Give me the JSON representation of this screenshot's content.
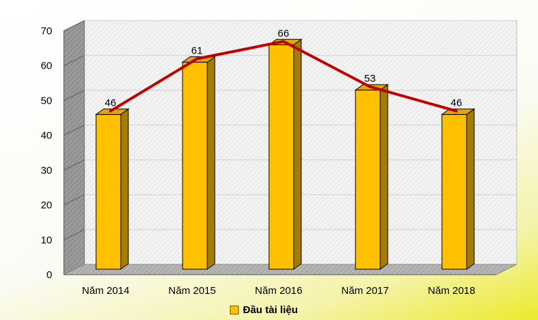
{
  "chart_data": {
    "type": "bar",
    "categories": [
      "Năm 2014",
      "Năm 2015",
      "Năm 2016",
      "Năm 2017",
      "Năm 2018"
    ],
    "series": [
      {
        "name": "Đầu tài liệu",
        "values": [
          46,
          61,
          66,
          53,
          46
        ]
      }
    ],
    "overlay_line": {
      "values": [
        46,
        61,
        66,
        53,
        46
      ],
      "color": "#C00000"
    },
    "data_labels": [
      "46",
      "61",
      "66",
      "53",
      "46"
    ],
    "y_ticks": [
      "0",
      "10",
      "20",
      "30",
      "40",
      "50",
      "60",
      "70"
    ],
    "ylim": [
      0,
      70
    ],
    "grid": true,
    "legend_position": "bottom",
    "style": "3d-column",
    "colors": {
      "bar_front": "#FFC000",
      "bar_side": "#A67C00",
      "bar_top": "#E0A800",
      "line": "#C00000",
      "wall": "#f2f2f2",
      "side_wall": "#8c8c8c"
    }
  },
  "legend": {
    "label": "Đầu tài liệu"
  }
}
